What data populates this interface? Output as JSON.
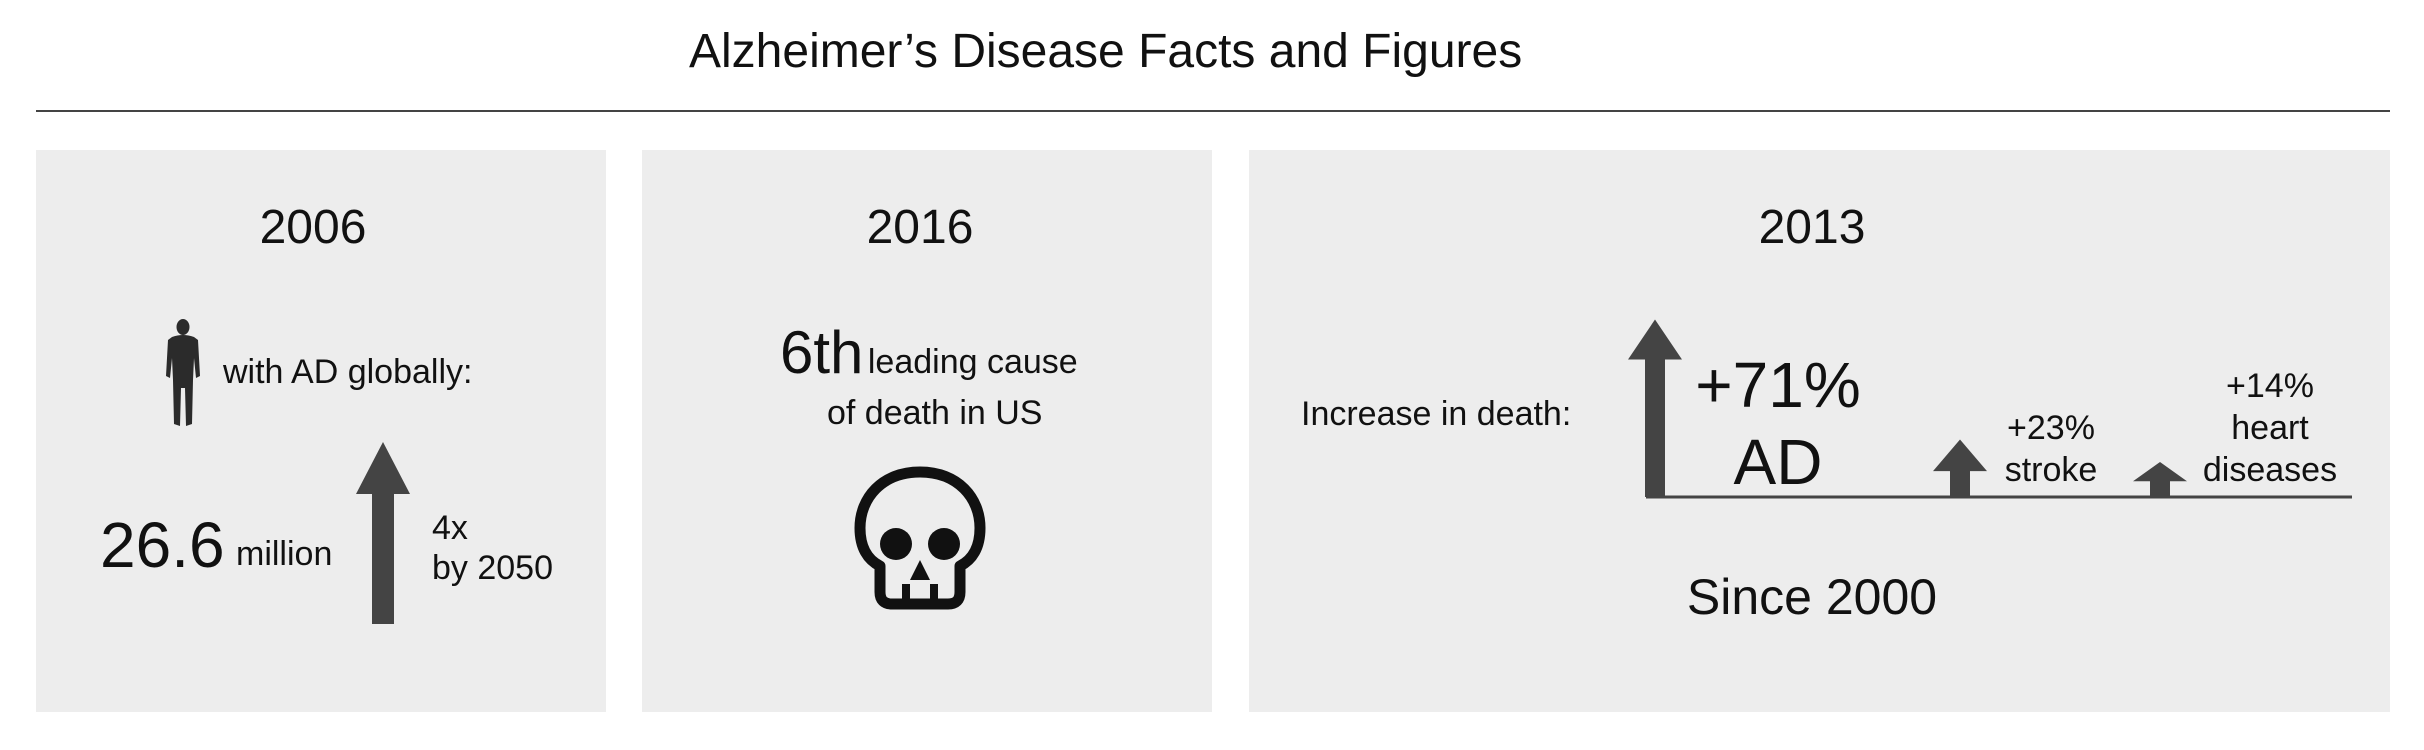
{
  "title": "Alzheimer’s Disease Facts and Figures",
  "panel_2006": {
    "year": "2006",
    "person_label": "with AD globally:",
    "count_value": "26.6",
    "count_unit": "million",
    "growth_line1": "4x",
    "growth_line2": "by 2050",
    "icons": {
      "person": "person-silhouette-icon",
      "arrow": "up-arrow-icon"
    }
  },
  "panel_2016": {
    "year": "2016",
    "rank": "6th",
    "rank_text_line1": "leading cause",
    "rank_text_line2": "of death in US",
    "icons": {
      "skull": "skull-icon"
    }
  },
  "panel_2013": {
    "year": "2013",
    "increase_label": "Increase in death:",
    "ad_value": "+71%",
    "ad_label": "AD",
    "stroke_value": "+23%",
    "stroke_label": "stroke",
    "heart_value": "+14%",
    "heart_label_line1": "heart",
    "heart_label_line2": "diseases",
    "since_label": "Since 2000",
    "increases_percent": {
      "AD": 71,
      "stroke": 23,
      "heart diseases": 14
    }
  },
  "colors": {
    "panel_bg": "#ededed",
    "arrow": "#444444",
    "rule": "#444444",
    "text": "#111111"
  }
}
